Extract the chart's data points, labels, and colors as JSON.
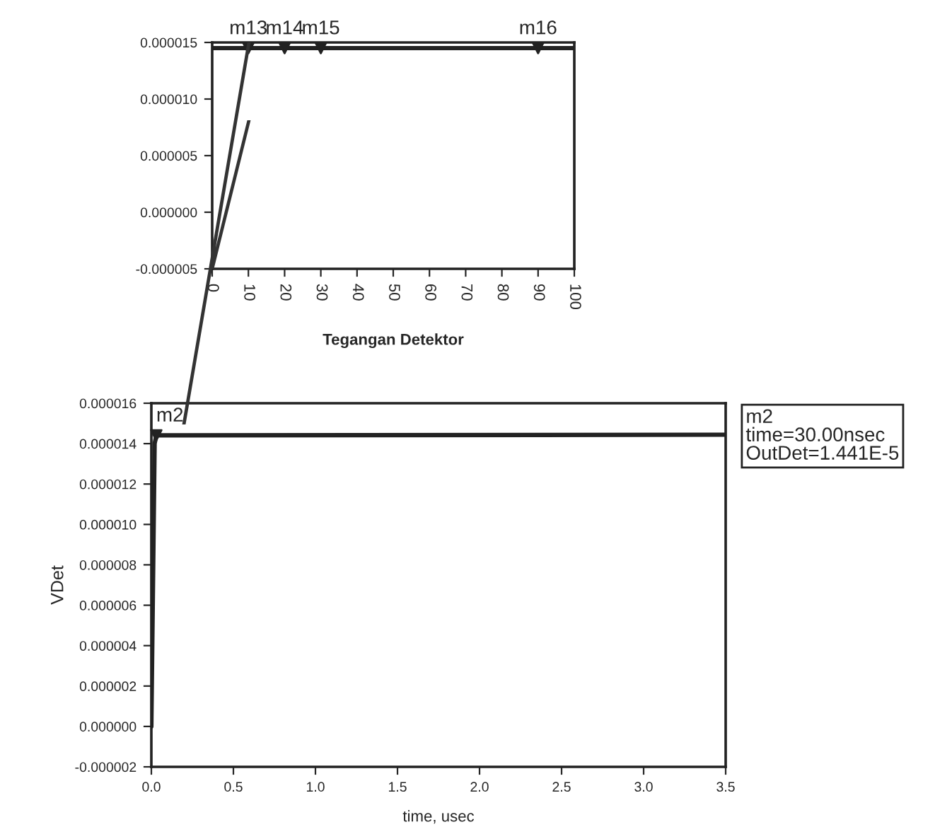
{
  "chart_data": [
    {
      "type": "line",
      "xlabel": "Tegangan Detektor",
      "xlim": [
        0,
        100
      ],
      "xticks": [
        0,
        10,
        20,
        30,
        40,
        50,
        60,
        70,
        80,
        90,
        100
      ],
      "ylim": [
        -5e-06,
        1.5e-05
      ],
      "yticks": [
        {
          "value": 1.5e-05,
          "label": "0.000015"
        },
        {
          "value": 1e-05,
          "label": "0.000010"
        },
        {
          "value": 5e-06,
          "label": "0.000005"
        },
        {
          "value": 0,
          "label": "0.000000"
        },
        {
          "value": -5e-06,
          "label": "-0.000005"
        }
      ],
      "grid": false,
      "legend": false,
      "series": [
        {
          "color": "#222222",
          "x": [
            0,
            100
          ],
          "values": [
            1.45e-05,
            1.45e-05
          ]
        },
        {
          "type": "scatter",
          "marker": "triangle",
          "color": "#222222",
          "x": [
            10,
            20,
            30,
            90
          ],
          "values": [
            1.45e-05,
            1.45e-05,
            1.45e-05,
            1.45e-05
          ]
        }
      ],
      "annotations": [
        {
          "text": "m13",
          "x": 10,
          "y": 1.45e-05
        },
        {
          "text": "m14",
          "x": 20,
          "y": 1.45e-05
        },
        {
          "text": "m15",
          "x": 30,
          "y": 1.45e-05
        },
        {
          "text": "m16",
          "x": 90,
          "y": 1.45e-05
        }
      ]
    },
    {
      "type": "line",
      "xlabel": "time, usec",
      "ylabel": "VDet",
      "xlim": [
        0,
        3.5
      ],
      "xticks": [
        {
          "value": 0,
          "label": "0.0"
        },
        0.5,
        {
          "value": 1,
          "label": "1.0"
        },
        1.5,
        {
          "value": 2,
          "label": "2.0"
        },
        2.5,
        {
          "value": 3,
          "label": "3.0"
        },
        3.5
      ],
      "ylim": [
        -2e-06,
        1.6e-05
      ],
      "yticks": [
        {
          "value": -2e-06,
          "label": "-0.000002"
        },
        {
          "value": 0,
          "label": "0.000000"
        },
        {
          "value": 2e-06,
          "label": "0.000002"
        },
        {
          "value": 4e-06,
          "label": "0.000004"
        },
        {
          "value": 6e-06,
          "label": "0.000006"
        },
        {
          "value": 8e-06,
          "label": "0.000008"
        },
        {
          "value": 1e-05,
          "label": "0.000010"
        },
        {
          "value": 1.2e-05,
          "label": "0.000012"
        },
        {
          "value": 1.4e-05,
          "label": "0.000014"
        },
        {
          "value": 1.6e-05,
          "label": "0.000016"
        }
      ],
      "grid": false,
      "legend": false,
      "series": [
        {
          "color": "#222222",
          "x": [
            0,
            0.02,
            0.03,
            3.5
          ],
          "values": [
            0,
            1.4e-05,
            1.441e-05,
            1.444e-05
          ]
        },
        {
          "type": "scatter",
          "marker": "triangle",
          "color": "#222222",
          "x": [
            0.03
          ],
          "values": [
            1.441e-05
          ]
        }
      ],
      "annotations": [
        {
          "text": "m2",
          "x": 0.03,
          "y": 1.441e-05
        },
        "m2\ntime=30.00nsec\nOutDet=1.441E-5"
      ]
    }
  ]
}
